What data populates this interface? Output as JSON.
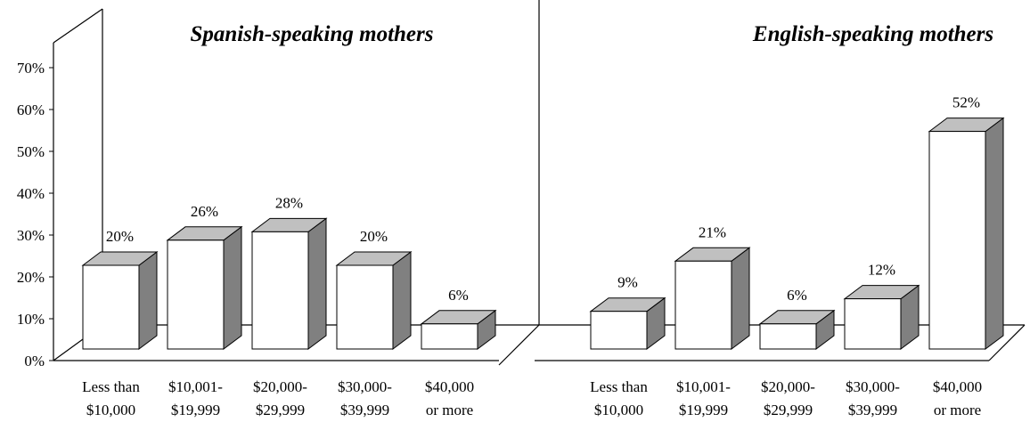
{
  "chart_data": {
    "type": "bar3d",
    "ylim": [
      0,
      70
    ],
    "yticks": [
      {
        "value": 0,
        "label": "0%"
      },
      {
        "value": 10,
        "label": "10%"
      },
      {
        "value": 20,
        "label": "20%"
      },
      {
        "value": 30,
        "label": "30%"
      },
      {
        "value": 40,
        "label": "40%"
      },
      {
        "value": 50,
        "label": "50%"
      },
      {
        "value": 60,
        "label": "60%"
      },
      {
        "value": 70,
        "label": "70%"
      }
    ],
    "colors": {
      "front": "#ffffff",
      "top": "#c0c0c0",
      "side": "#808080"
    },
    "panels": [
      {
        "title": "Spanish-speaking mothers",
        "categories": [
          "Less than\n$10,000",
          "$10,001-\n$19,999",
          "$20,000-\n$29,999",
          "$30,000-\n$39,999",
          "$40,000\nor more"
        ],
        "values": [
          20,
          26,
          28,
          20,
          6
        ],
        "value_labels": [
          "20%",
          "26%",
          "28%",
          "20%",
          "6%"
        ]
      },
      {
        "title": "English-speaking mothers",
        "categories": [
          "Less than\n$10,000",
          "$10,001-\n$19,999",
          "$20,000-\n$29,999",
          "$30,000-\n$39,999",
          "$40,000\nor more"
        ],
        "values": [
          9,
          21,
          6,
          12,
          52
        ],
        "value_labels": [
          "9%",
          "21%",
          "6%",
          "12%",
          "52%"
        ]
      }
    ]
  }
}
